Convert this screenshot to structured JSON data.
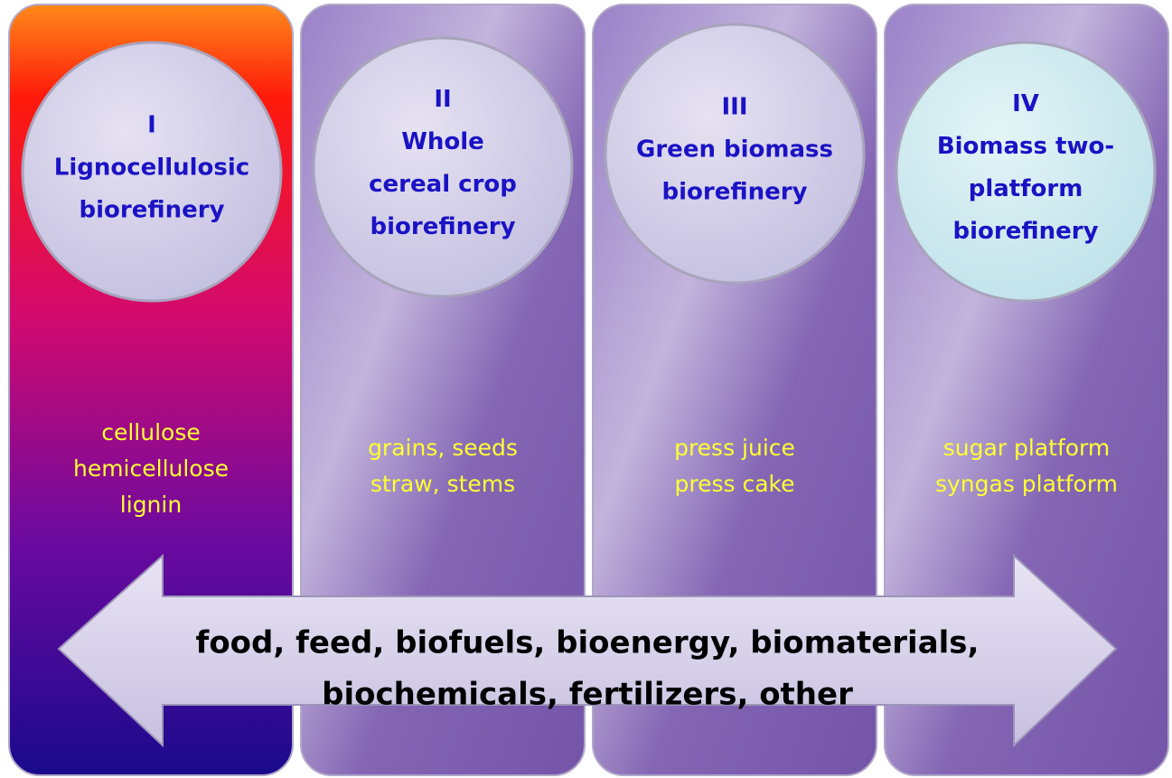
{
  "columns": [
    {
      "numeral": "I",
      "title": [
        "Lignocellulosic",
        "biorefinery"
      ],
      "items": [
        "cellulose",
        "hemicellulose",
        "lignin"
      ]
    },
    {
      "numeral": "II",
      "title": [
        "Whole",
        "cereal crop",
        "biorefinery"
      ],
      "items": [
        "grains, seeds",
        "straw, stems"
      ]
    },
    {
      "numeral": "III",
      "title": [
        "Green biomass",
        "biorefinery"
      ],
      "items": [
        "press juice",
        "press cake"
      ]
    },
    {
      "numeral": "IV",
      "title": [
        "Biomass two-",
        "platform",
        "biorefinery"
      ],
      "items": [
        "sugar platform",
        "syngas platform"
      ]
    }
  ],
  "arrow": {
    "lines": [
      "food, feed, biofuels, bioenergy, biomaterials,",
      "biochemicals, fertilizers, other"
    ]
  }
}
